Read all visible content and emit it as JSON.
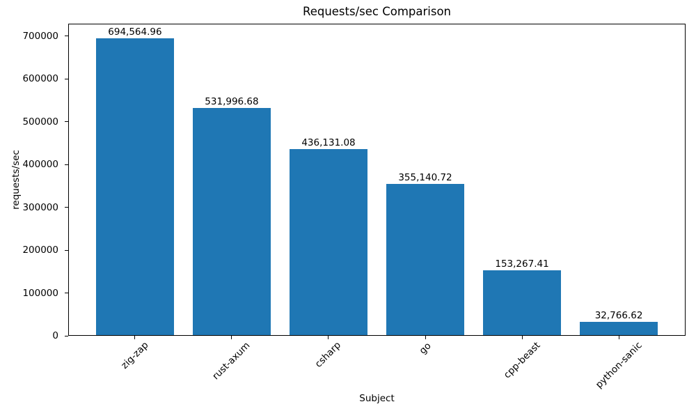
{
  "chart_data": {
    "type": "bar",
    "title": "Requests/sec Comparison",
    "xlabel": "Subject",
    "ylabel": "requests/sec",
    "categories": [
      "zig-zap",
      "rust-axum",
      "csharp",
      "go",
      "cpp-beast",
      "python-sanic"
    ],
    "values": [
      694564.96,
      531996.68,
      436131.08,
      355140.72,
      153267.41,
      32766.62
    ],
    "value_labels": [
      "694,564.96",
      "531,996.68",
      "436,131.08",
      "355,140.72",
      "153,267.41",
      "32,766.62"
    ],
    "yticks": [
      0,
      100000,
      200000,
      300000,
      400000,
      500000,
      600000,
      700000
    ],
    "ytick_labels": [
      "0",
      "100000",
      "200000",
      "300000",
      "400000",
      "500000",
      "600000",
      "700000"
    ],
    "ylim": [
      0,
      729293
    ],
    "xlim_units": [
      -0.69,
      5.69
    ],
    "bar_width_units": 0.8,
    "bar_color": "#1f77b4",
    "grid": false,
    "legend": false,
    "x_tick_rotation_deg": 45
  }
}
